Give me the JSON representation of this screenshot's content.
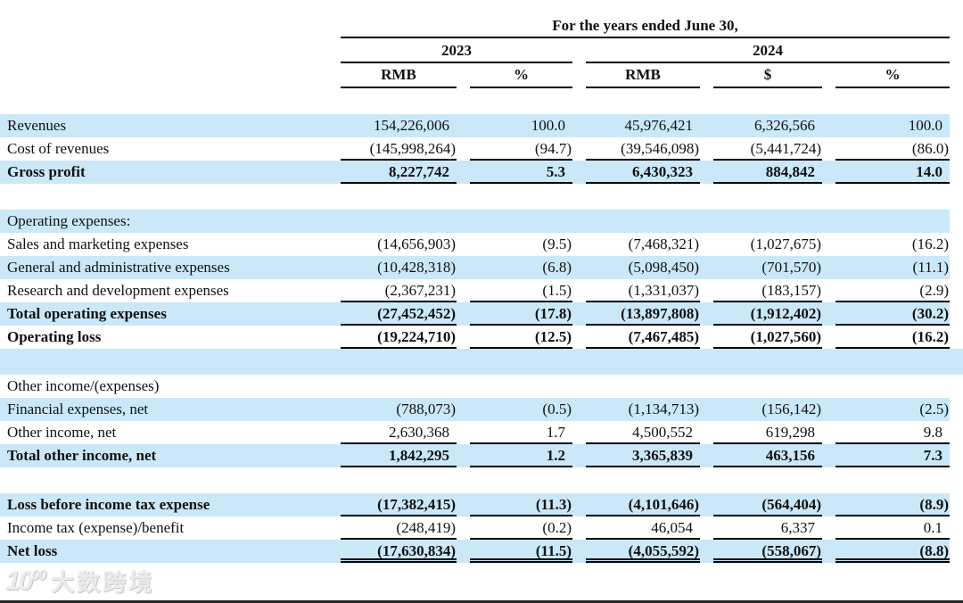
{
  "colors": {
    "stripe_blue": "#cae8f8",
    "text": "#111111",
    "rule": "#000000"
  },
  "header": {
    "title": "For the years ended June 30,",
    "year_2023": "2023",
    "year_2024": "2024",
    "columns": [
      "RMB",
      "%",
      "RMB",
      "$",
      "%"
    ]
  },
  "table": {
    "rows": [
      {
        "label": "Revenues",
        "values": [
          "154,226,006",
          "100.0",
          "45,976,421",
          "6,326,566",
          "100.0"
        ],
        "bold": false,
        "bg": "blue",
        "underline": "none"
      },
      {
        "label": "Cost of revenues",
        "values": [
          "(145,998,264)",
          "(94.7)",
          "(39,546,098)",
          "(5,441,724)",
          "(86.0)"
        ],
        "bold": false,
        "bg": "white",
        "underline": "single"
      },
      {
        "label": "Gross profit",
        "values": [
          "8,227,742",
          "5.3",
          "6,430,323",
          "884,842",
          "14.0"
        ],
        "bold": true,
        "bg": "blue",
        "underline": "single"
      },
      {
        "spacer": true,
        "bg": "white"
      },
      {
        "label": "Operating expenses:",
        "values": [],
        "bold": false,
        "bg": "blue",
        "underline": "none"
      },
      {
        "label": "Sales and marketing expenses",
        "values": [
          "(14,656,903)",
          "(9.5)",
          "(7,468,321)",
          "(1,027,675)",
          "(16.2)"
        ],
        "bold": false,
        "bg": "white",
        "underline": "none"
      },
      {
        "label": "General and administrative expenses",
        "values": [
          "(10,428,318)",
          "(6.8)",
          "(5,098,450)",
          "(701,570)",
          "(11.1)"
        ],
        "bold": false,
        "bg": "blue",
        "underline": "none"
      },
      {
        "label": "Research and development expenses",
        "values": [
          "(2,367,231)",
          "(1.5)",
          "(1,331,037)",
          "(183,157)",
          "(2.9)"
        ],
        "bold": false,
        "bg": "white",
        "underline": "single"
      },
      {
        "label": "Total operating expenses",
        "values": [
          "(27,452,452)",
          "(17.8)",
          "(13,897,808)",
          "(1,912,402)",
          "(30.2)"
        ],
        "bold": true,
        "bg": "blue",
        "underline": "single"
      },
      {
        "label": "Operating loss",
        "values": [
          "(19,224,710)",
          "(12.5)",
          "(7,467,485)",
          "(1,027,560)",
          "(16.2)"
        ],
        "bold": true,
        "bg": "white",
        "underline": "single"
      },
      {
        "spacer": true,
        "bg": "blue"
      },
      {
        "label": "Other income/(expenses)",
        "values": [],
        "bold": false,
        "bg": "white",
        "underline": "none"
      },
      {
        "label": "Financial expenses, net",
        "values": [
          "(788,073)",
          "(0.5)",
          "(1,134,713)",
          "(156,142)",
          "(2.5)"
        ],
        "bold": false,
        "bg": "blue",
        "underline": "none"
      },
      {
        "label": "Other income, net",
        "values": [
          "2,630,368",
          "1.7",
          "4,500,552",
          "619,298",
          "9.8"
        ],
        "bold": false,
        "bg": "white",
        "underline": "single"
      },
      {
        "label": "Total other income, net",
        "values": [
          "1,842,295",
          "1.2",
          "3,365,839",
          "463,156",
          "7.3"
        ],
        "bold": true,
        "bg": "blue",
        "underline": "single"
      },
      {
        "spacer": true,
        "bg": "white"
      },
      {
        "label": "Loss before income tax expense",
        "values": [
          "(17,382,415)",
          "(11.3)",
          "(4,101,646)",
          "(564,404)",
          "(8.9)"
        ],
        "bold": true,
        "bg": "blue",
        "underline": "single"
      },
      {
        "label": "Income tax (expense)/benefit",
        "values": [
          "(248,419)",
          "(0.2)",
          "46,054",
          "6,337",
          "0.1"
        ],
        "bold": false,
        "bg": "white",
        "underline": "single"
      },
      {
        "label": "Net loss",
        "values": [
          "(17,630,834)",
          "(11.5)",
          "(4,055,592)",
          "(558,067)",
          "(8.8)"
        ],
        "bold": true,
        "bg": "blue",
        "underline": "double"
      }
    ]
  },
  "watermark": {
    "logo": "10",
    "logo_sup": "00",
    "text": "大数跨境"
  }
}
